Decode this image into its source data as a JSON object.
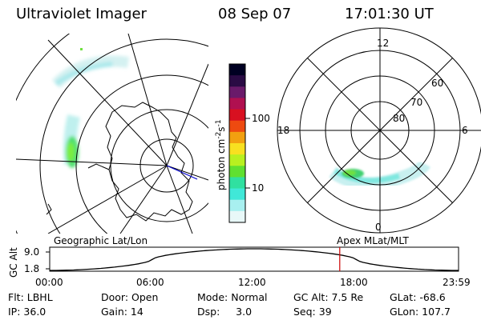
{
  "header": {
    "instrument": "Ultraviolet Imager",
    "date": "08 Sep 07",
    "time": "17:01:30 UT"
  },
  "colorbar": {
    "unit_label": "photon cm",
    "unit_sup1": "-2",
    "unit_mid": "s",
    "unit_sup2": "-1",
    "ticks": [
      "100",
      "10"
    ],
    "colors": [
      "#000022",
      "#2a0b44",
      "#6a1a6a",
      "#b01050",
      "#d81020",
      "#ee4a10",
      "#f2a010",
      "#f8e020",
      "#b8f020",
      "#60e030",
      "#30e0a0",
      "#40e8d8",
      "#a8f0f0",
      "#e8f8f8"
    ]
  },
  "polar_plot": {
    "mlt_labels": {
      "top": "12",
      "left": "18",
      "right": "6",
      "bottom": "0"
    },
    "lat_labels": [
      "60",
      "70",
      "80"
    ]
  },
  "timeline": {
    "ylabel": "GC Alt",
    "y_ticks": [
      "9.0",
      "1.8"
    ],
    "left_caption": "Geographic Lat/Lon",
    "right_caption": "Apex MLat/MLT",
    "x_ticks": [
      "00:00",
      "06:00",
      "12:00",
      "18:00",
      "23:59"
    ],
    "marker_time_hours": 17.025,
    "marker_color": "#cc0000"
  },
  "info": {
    "row1": {
      "flt": "Flt: LBHL",
      "door": "Door: Open",
      "mode": "Mode: Normal",
      "gcalt": "GC Alt: 7.5 Re",
      "glat": "GLat: -68.6"
    },
    "row2": {
      "ip": "IP: 36.0",
      "gain": "Gain: 14",
      "dsp": "Dsp:     3.0",
      "seq": "Seq: 39",
      "glon": "GLon: 107.7"
    }
  }
}
